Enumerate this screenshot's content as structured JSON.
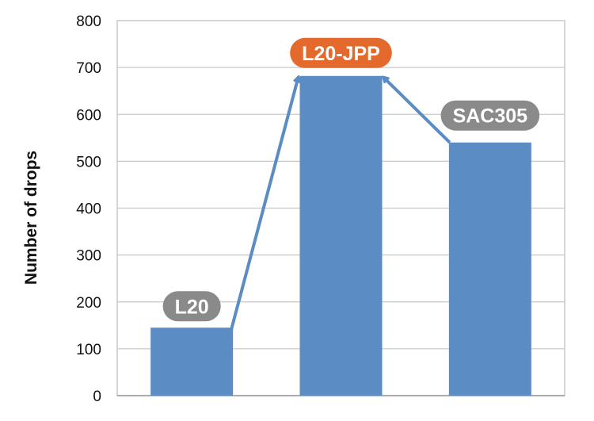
{
  "chart_data": {
    "type": "bar",
    "categories": [
      "L20",
      "L20-JPP",
      "SAC305"
    ],
    "values": [
      145,
      682,
      540
    ],
    "ylabel": "Number of drops",
    "xlabel": "",
    "ylim": [
      0,
      800
    ],
    "yticks": [
      0,
      100,
      200,
      300,
      400,
      500,
      600,
      700,
      800
    ],
    "grid": true,
    "colors": {
      "bar": "#5b8cc4",
      "arrow": "#5b8cc4",
      "label_default": "#8a8a8a",
      "label_highlight": "#e36a2c"
    },
    "highlight_category": "L20-JPP",
    "annotations": [
      {
        "type": "arrow",
        "from": "L20",
        "to": "L20-JPP"
      },
      {
        "type": "arrow",
        "from": "SAC305",
        "to": "L20-JPP"
      }
    ]
  }
}
